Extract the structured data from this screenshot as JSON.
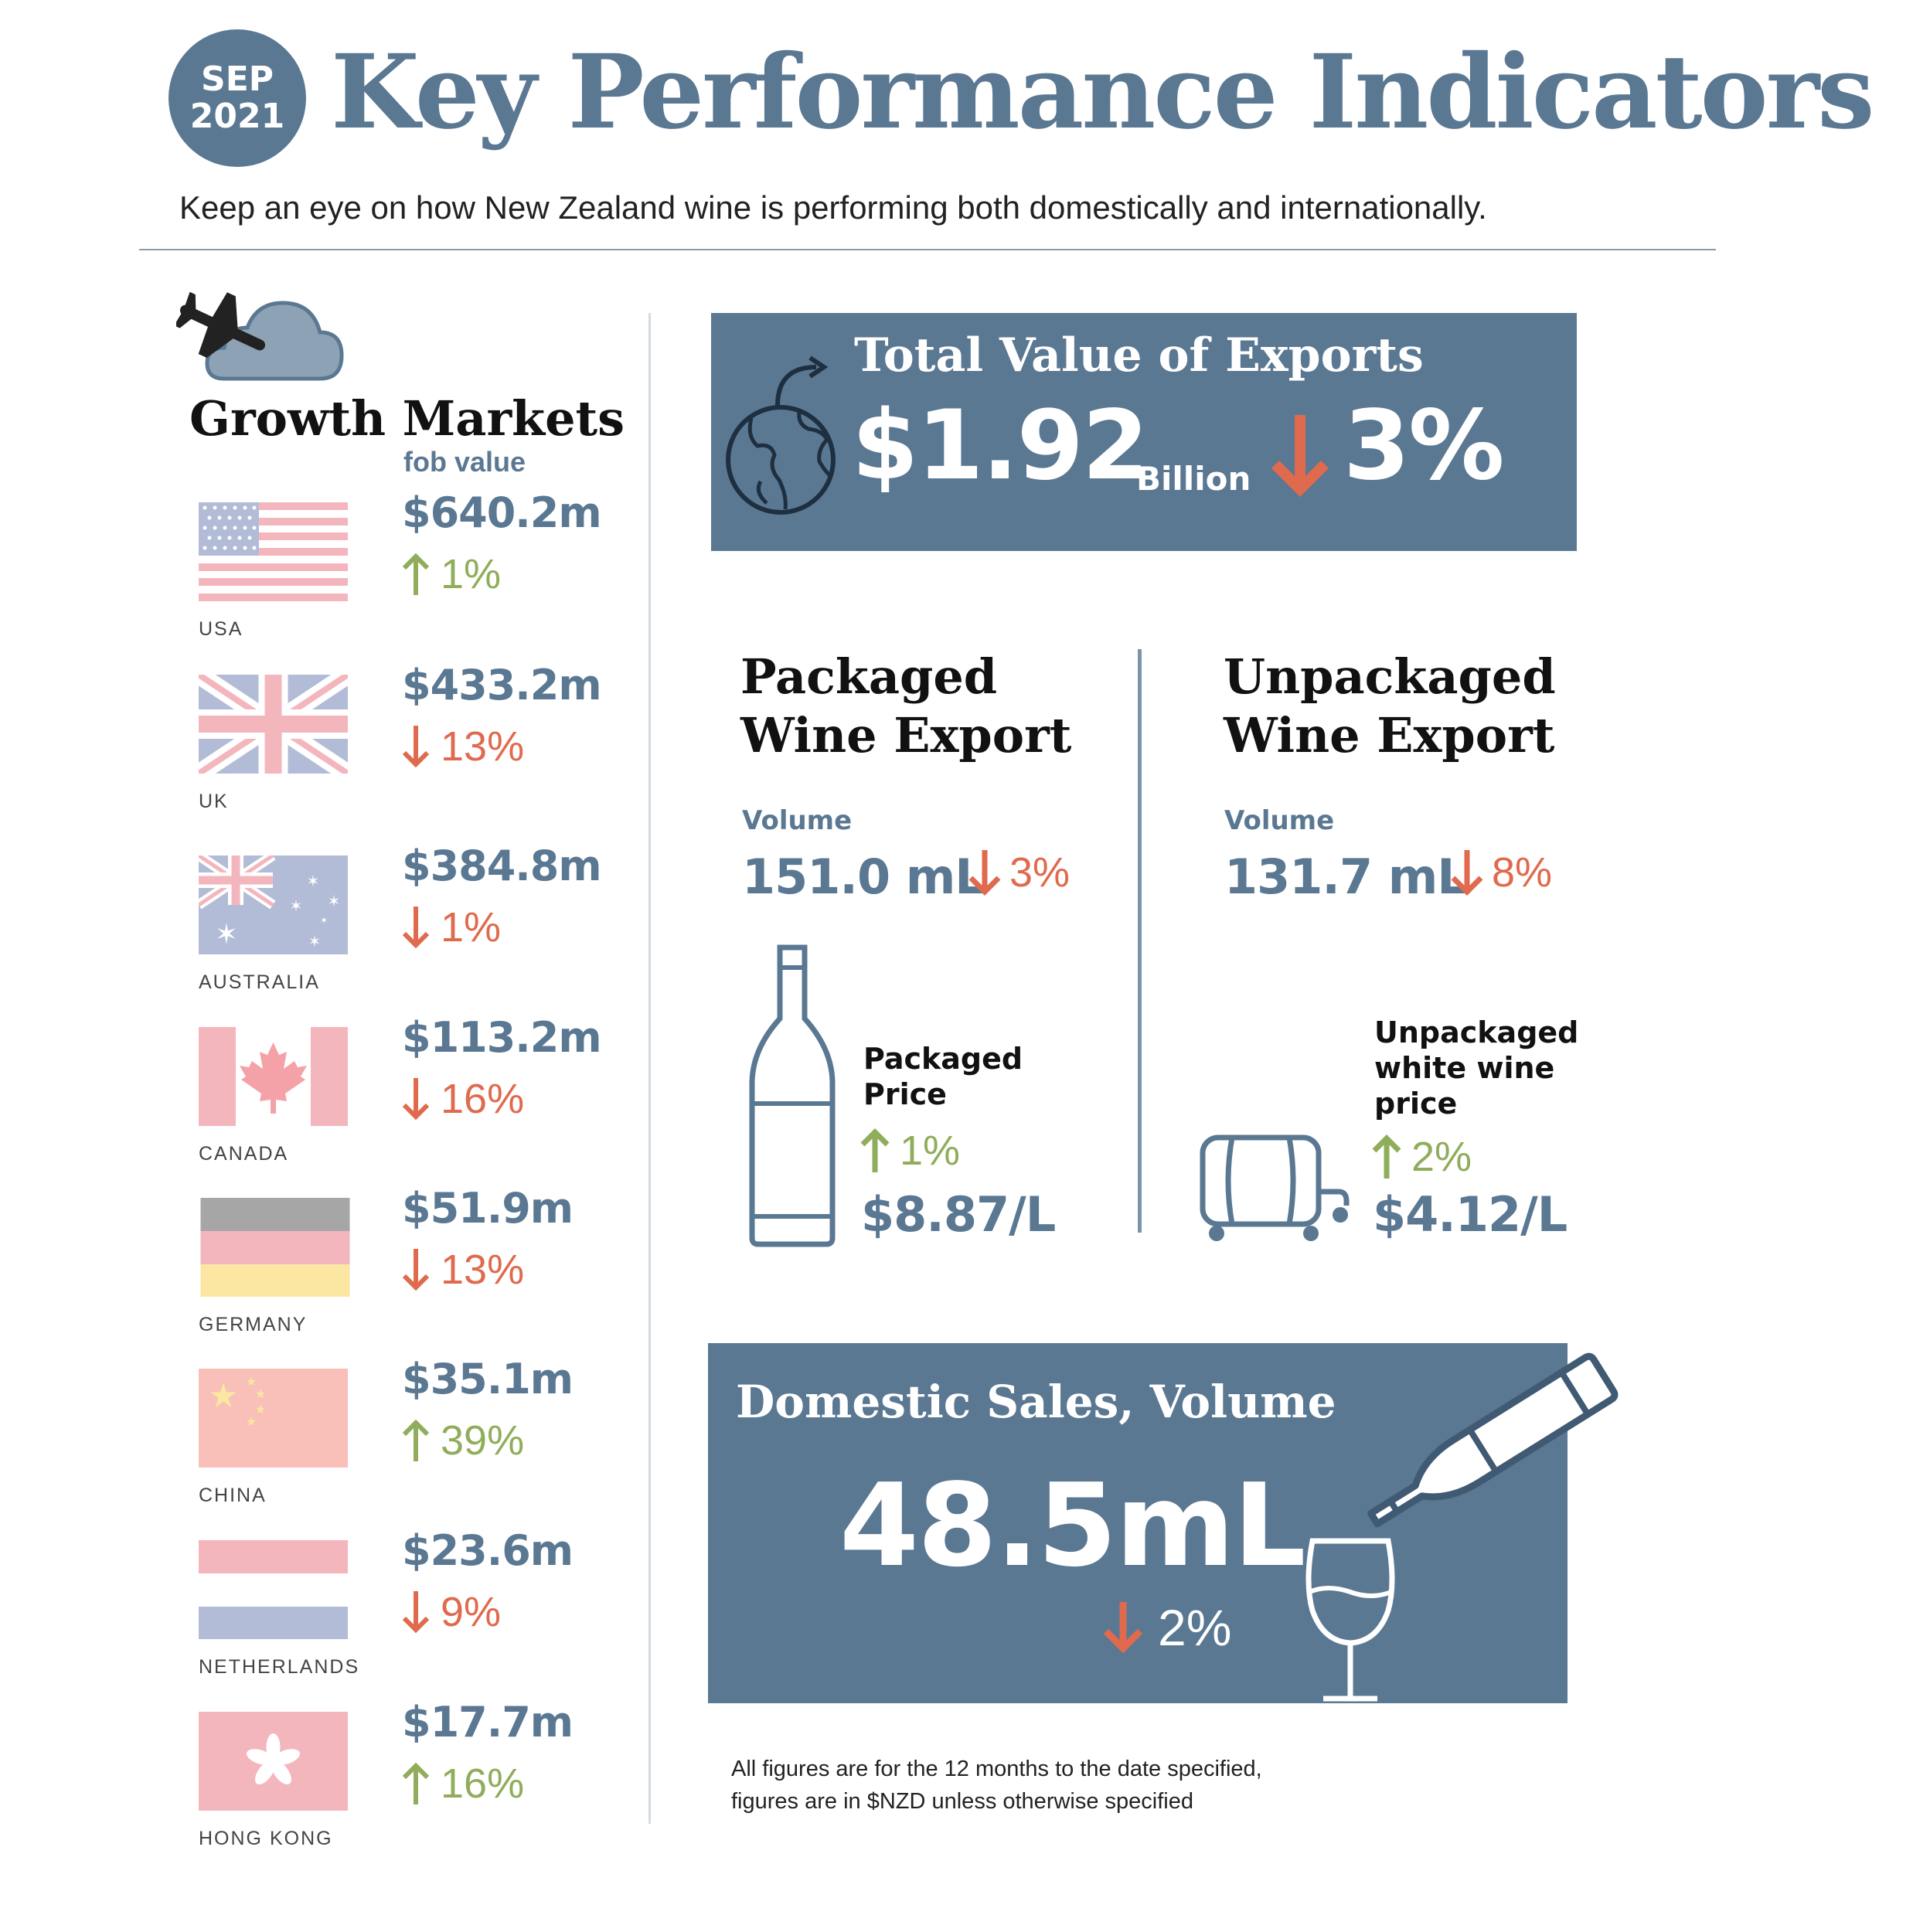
{
  "header": {
    "badge_month": "SEP",
    "badge_year": "2021",
    "title": "Key Performance Indicators",
    "subtitle": "Keep an eye on how New Zealand wine is performing both domestically and internationally."
  },
  "growth_markets": {
    "title": "Growth Markets",
    "value_label": "fob value",
    "markets": [
      {
        "country": "USA",
        "value": "$640.2m",
        "change": "1%",
        "direction": "up",
        "flag_icon": "usa-flag-icon"
      },
      {
        "country": "UK",
        "value": "$433.2m",
        "change": "13%",
        "direction": "down",
        "flag_icon": "uk-flag-icon"
      },
      {
        "country": "AUSTRALIA",
        "value": "$384.8m",
        "change": "1%",
        "direction": "down",
        "flag_icon": "australia-flag-icon"
      },
      {
        "country": "CANADA",
        "value": "$113.2m",
        "change": "16%",
        "direction": "down",
        "flag_icon": "canada-flag-icon"
      },
      {
        "country": "GERMANY",
        "value": "$51.9m",
        "change": "13%",
        "direction": "down",
        "flag_icon": "germany-flag-icon"
      },
      {
        "country": "CHINA",
        "value": "$35.1m",
        "change": "39%",
        "direction": "up",
        "flag_icon": "china-flag-icon"
      },
      {
        "country": "NETHERLANDS",
        "value": "$23.6m",
        "change": "9%",
        "direction": "down",
        "flag_icon": "netherlands-flag-icon"
      },
      {
        "country": "HONG KONG",
        "value": "$17.7m",
        "change": "16%",
        "direction": "up",
        "flag_icon": "hong-kong-flag-icon"
      }
    ]
  },
  "exports": {
    "title": "Total Value of Exports",
    "value": "$1.92",
    "unit": "Billion",
    "change": "3%",
    "direction": "down"
  },
  "packaged": {
    "title_line1": "Packaged",
    "title_line2": "Wine Export",
    "volume_label": "Volume",
    "volume": "151.0 mL",
    "volume_change": "3%",
    "volume_direction": "down",
    "price_label_line1": "Packaged",
    "price_label_line2": "Price",
    "price_change": "1%",
    "price_direction": "up",
    "price": "$8.87/L"
  },
  "unpackaged": {
    "title_line1": "Unpackaged",
    "title_line2": "Wine Export",
    "volume_label": "Volume",
    "volume": "131.7 mL",
    "volume_change": "8%",
    "volume_direction": "down",
    "price_label_line1": "Unpackaged",
    "price_label_line2": "white wine",
    "price_label_line3": "price",
    "price_change": "2%",
    "price_direction": "up",
    "price": "$4.12/L"
  },
  "domestic": {
    "title": "Domestic Sales, Volume",
    "value": "48.5mL",
    "change": "2%",
    "direction": "down"
  },
  "footnote": {
    "line1": "All figures are for the 12 months to the date specified,",
    "line2": "figures are in $NZD unless otherwise specified"
  },
  "colors": {
    "brand": "#5b7893",
    "up": "#8fad5a",
    "down": "#e06a4d",
    "text_dark": "#111111"
  }
}
